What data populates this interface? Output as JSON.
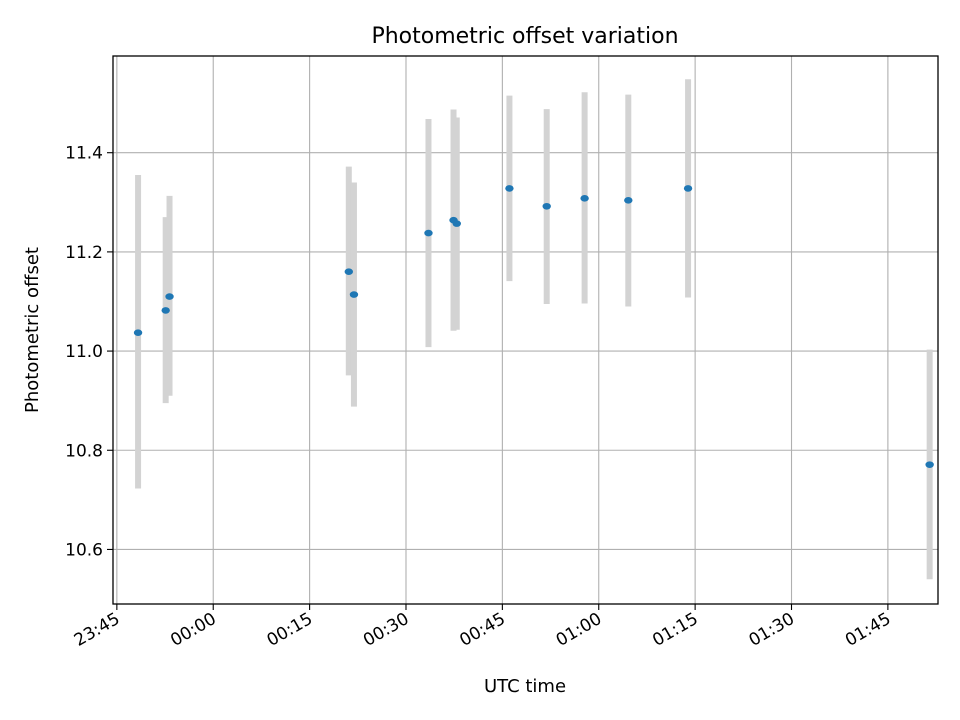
{
  "chart_data": {
    "type": "scatter",
    "title": "Photometric offset variation",
    "xlabel": "UTC time",
    "ylabel": "Photometric offset",
    "x_tick_labels": [
      "23:45",
      "00:00",
      "00:15",
      "00:30",
      "00:45",
      "01:00",
      "01:15",
      "01:30",
      "01:45"
    ],
    "y_tick_labels": [
      "10.6",
      "10.8",
      "11.0",
      "11.2",
      "11.4"
    ],
    "y_ticks": [
      10.6,
      10.8,
      11.0,
      11.2,
      11.4
    ],
    "xlim": [
      "23:44:24",
      "01:52:48"
    ],
    "ylim": [
      10.49,
      11.595
    ],
    "grid": true,
    "x_tick_label_rotation_deg": 30,
    "marker_color": "#1f77b4",
    "errorbar_color": "#d3d3d3",
    "points": [
      {
        "t": "23:48:18",
        "y": 11.037,
        "low": 10.723,
        "high": 11.355
      },
      {
        "t": "23:52:36",
        "y": 11.082,
        "low": 10.895,
        "high": 11.27
      },
      {
        "t": "23:53:12",
        "y": 11.11,
        "low": 10.91,
        "high": 11.313
      },
      {
        "t": "00:21:06",
        "y": 11.16,
        "low": 10.951,
        "high": 11.372
      },
      {
        "t": "00:21:54",
        "y": 11.114,
        "low": 10.888,
        "high": 11.34
      },
      {
        "t": "00:33:30",
        "y": 11.238,
        "low": 11.008,
        "high": 11.468
      },
      {
        "t": "00:37:24",
        "y": 11.264,
        "low": 11.041,
        "high": 11.487
      },
      {
        "t": "00:37:54",
        "y": 11.257,
        "low": 11.043,
        "high": 11.471
      },
      {
        "t": "00:46:06",
        "y": 11.328,
        "low": 11.141,
        "high": 11.515
      },
      {
        "t": "00:51:54",
        "y": 11.292,
        "low": 11.095,
        "high": 11.488
      },
      {
        "t": "00:57:48",
        "y": 11.308,
        "low": 11.096,
        "high": 11.522
      },
      {
        "t": "01:04:36",
        "y": 11.304,
        "low": 11.09,
        "high": 11.517
      },
      {
        "t": "01:13:54",
        "y": 11.328,
        "low": 11.108,
        "high": 11.548
      },
      {
        "t": "01:51:30",
        "y": 10.771,
        "low": 10.54,
        "high": 11.003
      }
    ]
  }
}
